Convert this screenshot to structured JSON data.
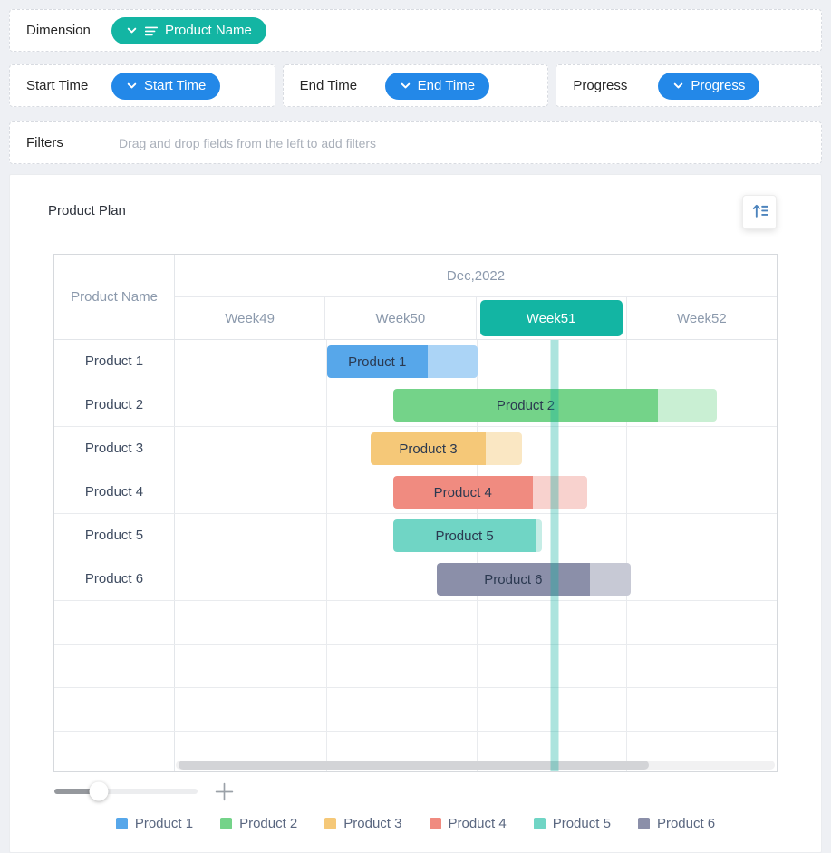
{
  "field_wells": {
    "dimension": {
      "label": "Dimension",
      "pill": {
        "text": "Product Name",
        "color": "#13B5A3",
        "icons": [
          "chevron-down-icon",
          "field-list-icon"
        ]
      }
    },
    "metrics": [
      {
        "label": "Start Time",
        "pill": {
          "text": "Start Time",
          "color": "#2388E8",
          "icon": "chevron-down-icon"
        }
      },
      {
        "label": "End Time",
        "pill": {
          "text": "End Time",
          "color": "#2388E8",
          "icon": "chevron-down-icon"
        }
      },
      {
        "label": "Progress",
        "pill": {
          "text": "Progress",
          "color": "#2388E8",
          "icon": "chevron-down-icon"
        }
      }
    ],
    "filters": {
      "label": "Filters",
      "placeholder": "Drag and drop fields from the left to add filters"
    }
  },
  "panel": {
    "title": "Product Plan",
    "toolbar_icon": "sort-ascending-icon",
    "toolbar_icon_color": "#4D84BD"
  },
  "chart_data": {
    "type": "gantt",
    "title": "Product Plan",
    "corner_header": "Product Name",
    "month_header": "Dec,2022",
    "week_columns": [
      "Week49",
      "Week50",
      "Week51",
      "Week52"
    ],
    "highlighted_week": "Week51",
    "highlight_color": "#13B5A3",
    "axis_range_weeks": [
      49,
      53
    ],
    "today_marker_week": 51.52,
    "today_line_color": "#12B2A1",
    "empty_rows": 3,
    "rows": [
      "Product 1",
      "Product 2",
      "Product 3",
      "Product 4",
      "Product 5",
      "Product 6"
    ],
    "tasks": [
      {
        "name": "Product 1",
        "start_week": 50.01,
        "end_week": 51.01,
        "progress_pct": 67,
        "color": "#57A7EA",
        "color_light": "#ABD4F6"
      },
      {
        "name": "Product 2",
        "start_week": 50.45,
        "end_week": 52.6,
        "progress_pct": 82,
        "color": "#74D389",
        "color_light": "#C9EFD3"
      },
      {
        "name": "Product 3",
        "start_week": 50.3,
        "end_week": 51.31,
        "progress_pct": 76,
        "color": "#F5C878",
        "color_light": "#FAE7C3"
      },
      {
        "name": "Product 4",
        "start_week": 50.45,
        "end_week": 51.74,
        "progress_pct": 72,
        "color": "#F08B80",
        "color_light": "#F8D2CE"
      },
      {
        "name": "Product 5",
        "start_week": 50.45,
        "end_week": 51.44,
        "progress_pct": 96,
        "color": "#70D5C5",
        "color_light": "#C6EDE6"
      },
      {
        "name": "Product 6",
        "start_week": 50.74,
        "end_week": 52.03,
        "progress_pct": 79,
        "color": "#8B8FA9",
        "color_light": "#C7C9D5"
      }
    ],
    "h_scrollbar": {
      "thumb_left_pct": 0.5,
      "thumb_width_pct": 78.5
    }
  },
  "legend": {
    "items": [
      {
        "label": "Product 1",
        "color": "#57A7EA"
      },
      {
        "label": "Product 2",
        "color": "#74D389"
      },
      {
        "label": "Product 3",
        "color": "#F5C878"
      },
      {
        "label": "Product 4",
        "color": "#F08B80"
      },
      {
        "label": "Product 5",
        "color": "#70D5C5"
      },
      {
        "label": "Product 6",
        "color": "#8B8FA9"
      }
    ]
  },
  "zoom_controls": {
    "slider_fill_pct": 31,
    "plus_icon": "plus-icon"
  }
}
